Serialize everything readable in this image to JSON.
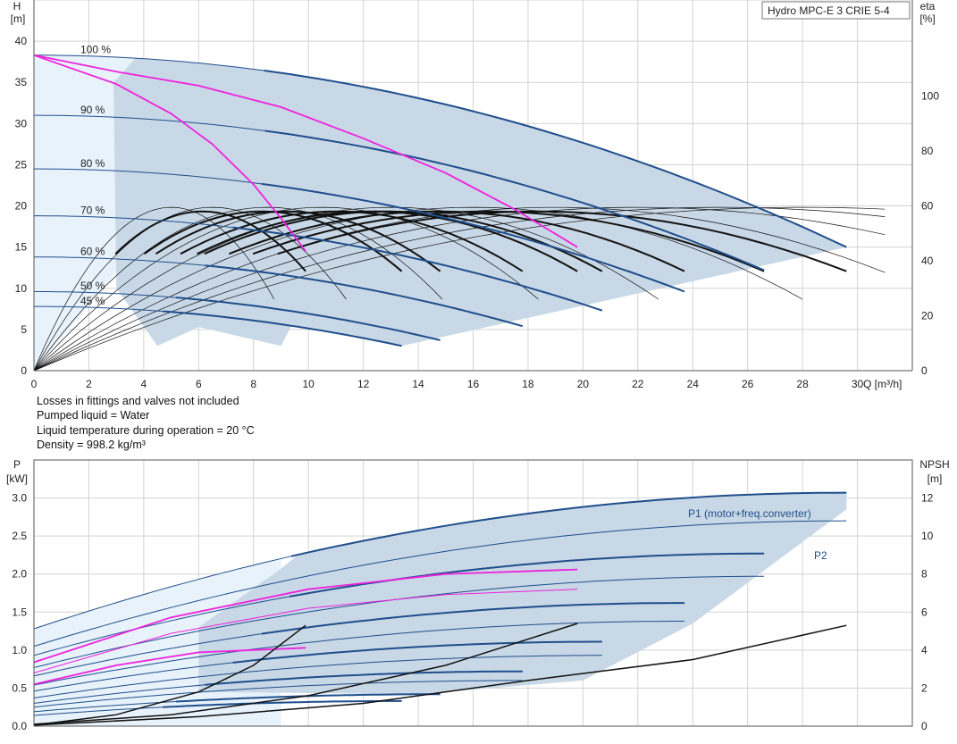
{
  "chart_data": [
    {
      "type": "line",
      "id": "head-chart",
      "title": "Hydro MPC-E 3 CRIE 5-4",
      "ylabel": "H",
      "yunit": "[m]",
      "y2label": "eta",
      "y2unit": "[%]",
      "xlabel": "Q [m³/h]",
      "xlim": [
        0,
        32
      ],
      "ylim": [
        0,
        45
      ],
      "y2lim": [
        0,
        135
      ],
      "xticks": [
        0,
        2,
        4,
        6,
        8,
        10,
        12,
        14,
        16,
        18,
        20,
        22,
        24,
        26,
        28,
        30
      ],
      "yticks": [
        0,
        5,
        10,
        15,
        20,
        25,
        30,
        35,
        40
      ],
      "y2ticks": [
        0,
        20,
        40,
        60,
        80,
        100
      ],
      "grid": true,
      "colors": {
        "head_curve": "#1f4e8c",
        "thin_curve": "#1f4e8c",
        "pink": "#ee22dd",
        "fill_dark": "#c9d8e6",
        "fill_light": "#e8f2fb",
        "eff_black": "#111111",
        "grid": "#d3d3d3"
      },
      "speed_labels": [
        "100 %",
        "90 %",
        "80 %",
        "70 %",
        "60 %",
        "50 %",
        "45 %"
      ],
      "head_series": [
        {
          "label": "100 %",
          "h0": 38.3,
          "qmax": 29.6,
          "hend": 15.0
        },
        {
          "label": "90 %",
          "h0": 31.0,
          "qmax": 26.6,
          "hend": 12.2
        },
        {
          "label": "80 %",
          "h0": 24.5,
          "qmax": 23.7,
          "hend": 9.6
        },
        {
          "label": "70 %",
          "h0": 18.8,
          "qmax": 20.7,
          "hend": 7.3
        },
        {
          "label": "60 %",
          "h0": 13.8,
          "qmax": 17.8,
          "hend": 5.4
        },
        {
          "label": "50 %",
          "h0": 9.6,
          "qmax": 14.8,
          "hend": 3.7
        },
        {
          "label": "45 %",
          "h0": 7.8,
          "qmax": 13.4,
          "hend": 3.0
        }
      ],
      "pink_series": [
        {
          "x": [
            0,
            3,
            6,
            9,
            12,
            15,
            17.5,
            19.8
          ],
          "y": [
            38.3,
            36.3,
            34.6,
            32.0,
            28.2,
            24.0,
            19.6,
            15.0
          ]
        },
        {
          "x": [
            0,
            3,
            5,
            6.5,
            8,
            9,
            9.9
          ],
          "y": [
            38.3,
            34.8,
            31.2,
            27.5,
            22.6,
            18.5,
            14.5
          ]
        }
      ],
      "efficiency_curves": {
        "peak_x": [
          5.0,
          6.5,
          8.5,
          10.5,
          13.0,
          16.0,
          19.0,
          22.0,
          25.0,
          28.0
        ],
        "peak_eta": 59.5,
        "end_x": [
          9.9,
          13.4,
          14.8,
          17.8,
          19.8,
          20.7,
          23.7,
          26.6,
          29.6
        ]
      }
    },
    {
      "type": "line",
      "id": "power-chart",
      "ylabel": "P",
      "yunit": "[kW]",
      "y2label": "NPSH",
      "y2unit": "[m]",
      "xlim": [
        0,
        32
      ],
      "ylim": [
        0,
        3.5
      ],
      "y2lim": [
        0,
        14
      ],
      "yticks": [
        0.0,
        0.5,
        1.0,
        1.5,
        2.0,
        2.5,
        3.0
      ],
      "yticklabels": [
        "0.0",
        "0.5",
        "1.0",
        "1.5",
        "2.0",
        "2.5",
        "3.0"
      ],
      "y2ticks": [
        0,
        2,
        4,
        6,
        8,
        10,
        12
      ],
      "grid": true,
      "annotations": [
        "P1 (motor+freq.converter)",
        "P2"
      ],
      "p1_series": [
        {
          "p0": 1.28,
          "qmax": 29.6,
          "pend": 3.07
        },
        {
          "p0": 0.93,
          "qmax": 26.6,
          "pend": 2.27
        },
        {
          "p0": 0.66,
          "qmax": 23.7,
          "pend": 1.62
        },
        {
          "p0": 0.46,
          "qmax": 20.7,
          "pend": 1.11
        },
        {
          "p0": 0.3,
          "qmax": 17.8,
          "pend": 0.72
        },
        {
          "p0": 0.19,
          "qmax": 14.8,
          "pend": 0.42
        },
        {
          "p0": 0.14,
          "qmax": 13.4,
          "pend": 0.33
        }
      ],
      "p2_series": [
        {
          "p0": 1.05,
          "qmax": 29.6,
          "pend": 2.7
        },
        {
          "p0": 0.77,
          "qmax": 26.6,
          "pend": 1.97
        },
        {
          "p0": 0.54,
          "qmax": 23.7,
          "pend": 1.38
        },
        {
          "p0": 0.37,
          "qmax": 20.7,
          "pend": 0.93
        },
        {
          "p0": 0.25,
          "qmax": 17.8,
          "pend": 0.6
        }
      ],
      "pink_p1": {
        "x": [
          0,
          5,
          10,
          15,
          19.8
        ],
        "y": [
          0.84,
          1.43,
          1.8,
          2.0,
          2.06
        ]
      },
      "pink_p2": {
        "x": [
          0,
          5,
          10,
          15,
          19.8
        ],
        "y": [
          0.7,
          1.22,
          1.55,
          1.73,
          1.8
        ]
      },
      "pink_p1_small": {
        "x": [
          0,
          3,
          6,
          9.9
        ],
        "y": [
          0.55,
          0.8,
          0.97,
          1.03
        ]
      },
      "npsh_curves": [
        {
          "x": [
            0,
            3,
            6,
            8,
            9.9
          ],
          "y": [
            0.05,
            0.6,
            1.8,
            3.2,
            5.3
          ]
        },
        {
          "x": [
            0,
            5,
            10,
            15,
            19.8
          ],
          "y": [
            0.1,
            0.6,
            1.6,
            3.2,
            5.4
          ]
        },
        {
          "x": [
            0,
            6,
            12,
            18,
            24,
            29.6
          ],
          "y": [
            0.05,
            0.5,
            1.2,
            2.4,
            3.5,
            5.3
          ]
        }
      ]
    }
  ],
  "notes": [
    "Losses in fittings and valves not included",
    "Pumped liquid = Water",
    "Liquid temperature during operation = 20 °C",
    "Density = 998.2 kg/m³"
  ]
}
